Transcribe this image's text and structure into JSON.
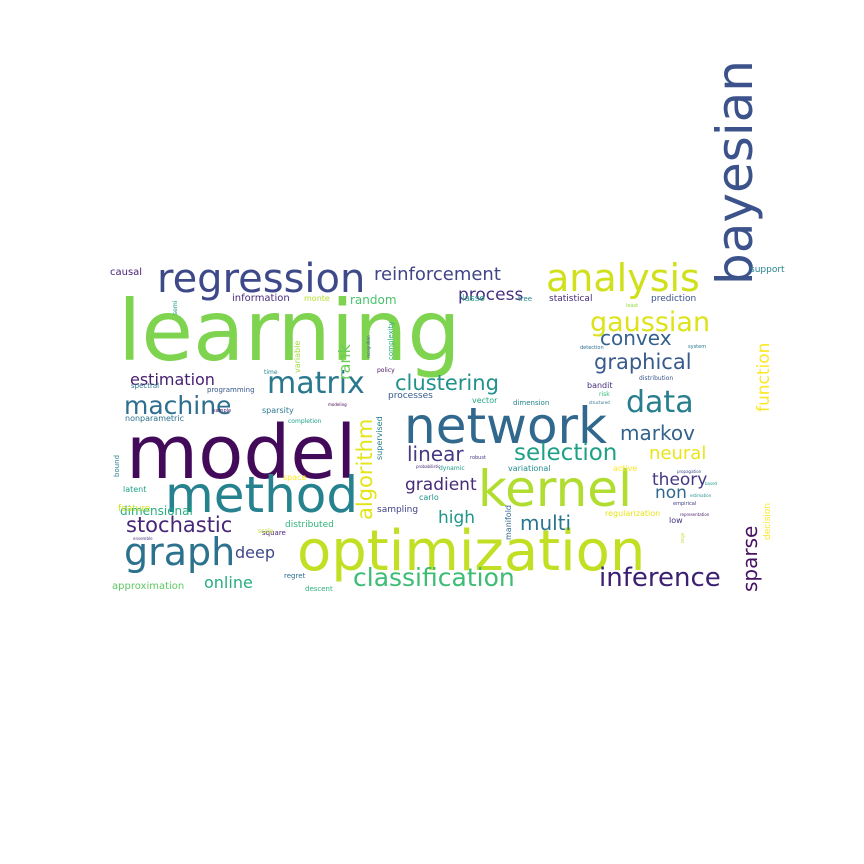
{
  "words": [
    {
      "text": "learning",
      "color": "#7ed34f"
    },
    {
      "text": "model",
      "color": "#440a5a"
    },
    {
      "text": "optimization",
      "color": "#c2df23"
    },
    {
      "text": "bayesian",
      "color": "#3b528b"
    },
    {
      "text": "network",
      "color": "#31688e"
    },
    {
      "text": "method",
      "color": "#26828e"
    },
    {
      "text": "kernel",
      "color": "#b0dd2f"
    },
    {
      "text": "regression",
      "color": "#3e4989"
    },
    {
      "text": "analysis",
      "color": "#d0e11c"
    },
    {
      "text": "graph",
      "color": "#2c728e"
    },
    {
      "text": "classification",
      "color": "#3dbc74"
    },
    {
      "text": "data",
      "color": "#277f8e"
    },
    {
      "text": "inference",
      "color": "#3b1f70"
    },
    {
      "text": "matrix",
      "color": "#2a788e"
    },
    {
      "text": "gaussian",
      "color": "#dde318"
    },
    {
      "text": "machine",
      "color": "#2e6e8e"
    },
    {
      "text": "clustering",
      "color": "#21918c"
    },
    {
      "text": "selection",
      "color": "#1fa187"
    },
    {
      "text": "graphical",
      "color": "#375b8d"
    },
    {
      "text": "stochastic",
      "color": "#482677"
    },
    {
      "text": "reinforcement",
      "color": "#414487"
    },
    {
      "text": "convex",
      "color": "#34618d"
    },
    {
      "text": "markov",
      "color": "#33638d"
    },
    {
      "text": "linear",
      "color": "#443983"
    },
    {
      "text": "algorithm",
      "color": "#e5e419"
    },
    {
      "text": "sparse",
      "color": "#471164"
    },
    {
      "text": "function",
      "color": "#fde725"
    },
    {
      "text": "neural",
      "color": "#eae51a"
    },
    {
      "text": "multi",
      "color": "#2a768e"
    },
    {
      "text": "gradient",
      "color": "#472a7a"
    },
    {
      "text": "process",
      "color": "#46307e"
    },
    {
      "text": "theory",
      "color": "#453781"
    },
    {
      "text": "estimation",
      "color": "#482071"
    },
    {
      "text": "non",
      "color": "#31678e"
    },
    {
      "text": "high",
      "color": "#1f968b"
    },
    {
      "text": "deep",
      "color": "#3f4788"
    },
    {
      "text": "online",
      "color": "#27ad81"
    },
    {
      "text": "rank",
      "color": "#6ccd5a"
    },
    {
      "text": "dimensional",
      "color": "#26ad81"
    },
    {
      "text": "random",
      "color": "#4ac16d"
    },
    {
      "text": "causal",
      "color": "#481f70"
    },
    {
      "text": "information",
      "color": "#472d7b"
    },
    {
      "text": "approximation",
      "color": "#5ec962"
    },
    {
      "text": "decision",
      "color": "#fde725"
    },
    {
      "text": "support",
      "color": "#25848e"
    },
    {
      "text": "prediction",
      "color": "#3b528b"
    },
    {
      "text": "statistical",
      "color": "#472c7a"
    },
    {
      "text": "distributed",
      "color": "#31b57b"
    },
    {
      "text": "sampling",
      "color": "#414287"
    },
    {
      "text": "lasso",
      "color": "#21a685"
    },
    {
      "text": "monte",
      "color": "#b5de2b"
    },
    {
      "text": "carlo",
      "color": "#20928c"
    },
    {
      "text": "bandit",
      "color": "#472f7d"
    },
    {
      "text": "variational",
      "color": "#228c8d"
    },
    {
      "text": "active",
      "color": "#fde725"
    },
    {
      "text": "manifold",
      "color": "#31688e"
    },
    {
      "text": "supervised",
      "color": "#277f8e"
    },
    {
      "text": "feature",
      "color": "#cde11d"
    },
    {
      "text": "latent",
      "color": "#1fa088"
    },
    {
      "text": "space",
      "color": "#fde725"
    },
    {
      "text": "low",
      "color": "#46327e"
    },
    {
      "text": "regularization",
      "color": "#e7e419"
    },
    {
      "text": "sparsity",
      "color": "#2a788e"
    },
    {
      "text": "nonparametric",
      "color": "#2d708e"
    },
    {
      "text": "processes",
      "color": "#365c8d"
    },
    {
      "text": "vector",
      "color": "#22a884"
    },
    {
      "text": "programming",
      "color": "#38588c"
    },
    {
      "text": "spectral",
      "color": "#2c718e"
    },
    {
      "text": "complexity",
      "color": "#28ae80"
    },
    {
      "text": "variable",
      "color": "#a0da39"
    },
    {
      "text": "square",
      "color": "#482475"
    },
    {
      "text": "regret",
      "color": "#2f6c8e"
    },
    {
      "text": "descent",
      "color": "#2db27d"
    },
    {
      "text": "tree",
      "color": "#25838e"
    },
    {
      "text": "policy",
      "color": "#471063"
    },
    {
      "text": "time",
      "color": "#24878e"
    },
    {
      "text": "semi",
      "color": "#1e9b8a"
    },
    {
      "text": "bound",
      "color": "#26828e"
    },
    {
      "text": "dimension",
      "color": "#24868e"
    },
    {
      "text": "dynamic",
      "color": "#1f9a8a"
    },
    {
      "text": "robust",
      "color": "#443a83"
    },
    {
      "text": "risk",
      "color": "#35b779"
    },
    {
      "text": "distribution",
      "color": "#39568c"
    },
    {
      "text": "system",
      "color": "#2a788e"
    },
    {
      "text": "empirical",
      "color": "#433e85"
    },
    {
      "text": "least",
      "color": "#95d840"
    },
    {
      "text": "scale",
      "color": "#b8de29"
    },
    {
      "text": "sample",
      "color": "#48186a"
    },
    {
      "text": "completion",
      "color": "#1fa287"
    },
    {
      "text": "probabilistic",
      "color": "#482878"
    },
    {
      "text": "ensemble",
      "color": "#46327e"
    },
    {
      "text": "large",
      "color": "#bddf26"
    },
    {
      "text": "modeling",
      "color": "#440154"
    },
    {
      "text": "structured",
      "color": "#2d708e"
    },
    {
      "text": "detection",
      "color": "#2d708e"
    },
    {
      "text": "recognition",
      "color": "#3b528b"
    },
    {
      "text": "propagation",
      "color": "#3e4a89"
    },
    {
      "text": "representation",
      "color": "#481b6d"
    },
    {
      "text": "estimation2",
      "color": "#21918c"
    },
    {
      "text": "based",
      "color": "#1f9e89"
    }
  ]
}
